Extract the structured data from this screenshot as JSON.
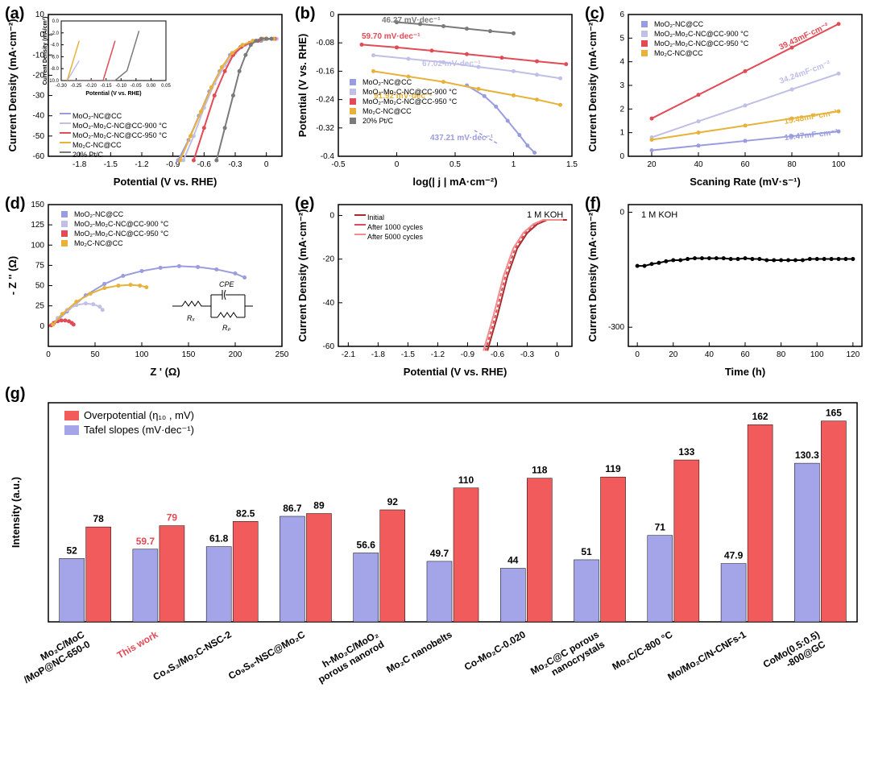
{
  "colors": {
    "blue": "#9a9ce0",
    "purple": "#bfbfe7",
    "red": "#e24a55",
    "yellow": "#e6b23a",
    "gray": "#7a7a7a",
    "darkred": "#a82b2b",
    "rose": "#f08c8c",
    "black": "#000000",
    "barRed": "#f25b5b",
    "barBlue": "#a4a4e8",
    "axis": "#000",
    "grid": "#e5e5e5",
    "bg": "#ffffff"
  },
  "panelA": {
    "label": "(a)",
    "xlabel": "Potential (V vs. RHE)",
    "ylabel": "Current Density (mA·cm⁻²)",
    "xlim": [
      -2.1,
      0.15
    ],
    "ylim": [
      -60,
      10
    ],
    "xticks": [
      -1.8,
      -1.5,
      -1.2,
      -0.9,
      -0.6,
      -0.3,
      0.0
    ],
    "yticks": [
      -60,
      -50,
      -40,
      -30,
      -20,
      -10,
      0,
      10
    ],
    "series": [
      {
        "name": "MoO₂-NC@CC",
        "color": "blue",
        "x": [
          -0.85,
          -0.75,
          -0.65,
          -0.55,
          -0.45,
          -0.35,
          -0.25,
          -0.15,
          -0.05,
          0.05
        ],
        "y": [
          -62,
          -52,
          -40,
          -28,
          -18,
          -10,
          -6,
          -4,
          -3,
          -2
        ]
      },
      {
        "name": "MoO₂-Mo₂C-NC@CC-900 °C",
        "color": "purple",
        "x": [
          -0.8,
          -0.7,
          -0.6,
          -0.5,
          -0.4,
          -0.3,
          -0.2,
          -0.1,
          0,
          0.1
        ],
        "y": [
          -62,
          -50,
          -36,
          -24,
          -15,
          -9,
          -5,
          -3,
          -2,
          -2
        ]
      },
      {
        "name": "MoO₂-Mo₂C-NC@CC-950 °C",
        "color": "red",
        "x": [
          -0.7,
          -0.6,
          -0.5,
          -0.4,
          -0.32,
          -0.24,
          -0.16,
          -0.08,
          0,
          0.08
        ],
        "y": [
          -62,
          -46,
          -30,
          -18,
          -10,
          -6,
          -4,
          -3,
          -2,
          -2
        ]
      },
      {
        "name": "Mo₂C-NC@CC",
        "color": "yellow",
        "x": [
          -0.83,
          -0.73,
          -0.63,
          -0.53,
          -0.43,
          -0.33,
          -0.23,
          -0.13,
          -0.03,
          0.07
        ],
        "y": [
          -62,
          -50,
          -38,
          -26,
          -16,
          -9,
          -5,
          -3,
          -2,
          -2
        ]
      },
      {
        "name": "20% Pt/C",
        "color": "gray",
        "x": [
          -0.48,
          -0.4,
          -0.32,
          -0.26,
          -0.2,
          -0.15,
          -0.1,
          -0.05,
          0,
          0.05
        ],
        "y": [
          -62,
          -46,
          -30,
          -18,
          -10,
          -5,
          -3,
          -2,
          -2,
          -2
        ]
      }
    ],
    "inset": {
      "xlabel": "Potential (V vs. RHE)",
      "ylabel": "Current Density (mA/cm²)",
      "xlim": [
        -0.3,
        0.05
      ],
      "ylim": [
        -10,
        0
      ],
      "xticks": [
        -0.3,
        -0.25,
        -0.2,
        -0.15,
        -0.1,
        -0.05,
        0.0,
        0.05
      ],
      "yticks": [
        -10,
        -8,
        -6,
        -4,
        -2,
        0
      ]
    }
  },
  "panelB": {
    "label": "(b)",
    "xlabel": "log(| j | mA·cm⁻²)",
    "ylabel": "Potential (V vs. RHE)",
    "xlim": [
      -0.5,
      1.5
    ],
    "ylim": [
      -0.4,
      0.0
    ],
    "xticks": [
      -0.5,
      0.0,
      0.5,
      1.0,
      1.5
    ],
    "yticks": [
      -0.4,
      -0.32,
      -0.24,
      -0.16,
      -0.08,
      0.0
    ],
    "series": [
      {
        "name": "MoO₂-NC@CC",
        "color": "blue",
        "slope": "437.21 mV·dec⁻¹",
        "x": [
          0.6,
          0.75,
          0.85,
          0.95,
          1.05,
          1.12,
          1.18
        ],
        "y": [
          -0.2,
          -0.23,
          -0.26,
          -0.3,
          -0.34,
          -0.37,
          -0.39
        ]
      },
      {
        "name": "MoO₂-Mo₂C-NC@CC-900 °C",
        "color": "purple",
        "slope": "67.02 mV·dec⁻¹",
        "x": [
          -0.2,
          0.1,
          0.4,
          0.7,
          1.0,
          1.2,
          1.4
        ],
        "y": [
          -0.115,
          -0.125,
          -0.135,
          -0.148,
          -0.16,
          -0.17,
          -0.18
        ]
      },
      {
        "name": "MoO₂-Mo₂C-NC@CC-950 °C",
        "color": "red",
        "slope": "59.70 mV·dec⁻¹",
        "x": [
          -0.3,
          0.0,
          0.3,
          0.6,
          0.9,
          1.2,
          1.45
        ],
        "y": [
          -0.085,
          -0.093,
          -0.102,
          -0.112,
          -0.122,
          -0.132,
          -0.14
        ]
      },
      {
        "name": "Mo₂C-NC@CC",
        "color": "yellow",
        "slope": "91.92 mV·dec⁻¹",
        "x": [
          -0.2,
          0.1,
          0.4,
          0.7,
          1.0,
          1.2,
          1.4
        ],
        "y": [
          -0.16,
          -0.175,
          -0.19,
          -0.21,
          -0.228,
          -0.24,
          -0.255
        ]
      },
      {
        "name": "20% Pt/C",
        "color": "gray",
        "slope": "46.27 mV·dec⁻¹",
        "x": [
          0.0,
          0.2,
          0.4,
          0.6,
          0.8,
          1.0
        ],
        "y": [
          -0.022,
          -0.027,
          -0.033,
          -0.04,
          -0.047,
          -0.053
        ]
      }
    ]
  },
  "panelC": {
    "label": "(c)",
    "xlabel": "Scaning Rate (mV·s⁻¹)",
    "ylabel": "Current Density (mA·cm⁻²)",
    "xlim": [
      10,
      110
    ],
    "ylim": [
      0,
      6
    ],
    "xticks": [
      20,
      40,
      60,
      80,
      100
    ],
    "yticks": [
      0,
      1,
      2,
      3,
      4,
      5,
      6
    ],
    "series": [
      {
        "name": "MoO₂-NC@CC",
        "color": "blue",
        "cap": "10.47mF·cm⁻²",
        "x": [
          20,
          40,
          60,
          80,
          100
        ],
        "y": [
          0.25,
          0.45,
          0.65,
          0.85,
          1.05
        ]
      },
      {
        "name": "MoO₂-Mo₂C-NC@CC-900 °C",
        "color": "purple",
        "cap": "34.24mF·cm⁻²",
        "x": [
          20,
          40,
          60,
          80,
          100
        ],
        "y": [
          0.8,
          1.48,
          2.15,
          2.83,
          3.5
        ]
      },
      {
        "name": "MoO₂-Mo₂C-NC@CC-950 °C",
        "color": "red",
        "cap": "39.43mF·cm⁻²",
        "x": [
          20,
          40,
          60,
          80,
          100
        ],
        "y": [
          1.6,
          2.6,
          3.6,
          4.6,
          5.6
        ]
      },
      {
        "name": "Mo₂C-NC@CC",
        "color": "yellow",
        "cap": "15.48mF·cm⁻²",
        "x": [
          20,
          40,
          60,
          80,
          100
        ],
        "y": [
          0.7,
          1.0,
          1.3,
          1.6,
          1.9
        ]
      }
    ]
  },
  "panelD": {
    "label": "(d)",
    "xlabel": "Z ' (Ω)",
    "ylabel": "- Z '' (Ω)",
    "xlim": [
      0,
      250
    ],
    "ylim": [
      -25,
      150
    ],
    "xticks": [
      0,
      50,
      100,
      150,
      200,
      250
    ],
    "yticks": [
      0,
      25,
      50,
      75,
      100,
      125,
      150
    ],
    "circuit": {
      "Rs": "Rₓ",
      "CPE": "CPE",
      "Rp": "Rₚ"
    },
    "series": [
      {
        "name": "MoO₂-NC@CC",
        "color": "blue",
        "x": [
          5,
          20,
          40,
          60,
          80,
          100,
          120,
          140,
          160,
          180,
          200,
          210
        ],
        "y": [
          2,
          18,
          38,
          52,
          62,
          68,
          72,
          74,
          73,
          70,
          65,
          60
        ]
      },
      {
        "name": "MoO₂-Mo₂C-NC@CC-900 °C",
        "color": "purple",
        "x": [
          4,
          10,
          20,
          30,
          40,
          48,
          55,
          58
        ],
        "y": [
          2,
          10,
          20,
          26,
          28,
          27,
          24,
          20
        ]
      },
      {
        "name": "MoO₂-Mo₂C-NC@CC-950 °C",
        "color": "red",
        "x": [
          3,
          6,
          10,
          14,
          18,
          22,
          25,
          27
        ],
        "y": [
          1,
          4,
          6,
          7,
          7,
          6,
          4,
          2
        ]
      },
      {
        "name": "Mo₂C-NC@CC",
        "color": "yellow",
        "x": [
          5,
          15,
          30,
          45,
          60,
          75,
          88,
          98,
          105
        ],
        "y": [
          2,
          15,
          30,
          40,
          47,
          50,
          51,
          50,
          48
        ]
      }
    ]
  },
  "panelE": {
    "label": "(e)",
    "xlabel": "Potential (V vs. RHE)",
    "ylabel": "Current Density (mA·cm⁻²)",
    "note": "1 M KOH",
    "xlim": [
      -2.2,
      0.15
    ],
    "ylim": [
      -60,
      5
    ],
    "xticks": [
      -2.1,
      -1.8,
      -1.5,
      -1.2,
      -0.9,
      -0.6,
      -0.3,
      0.0
    ],
    "yticks": [
      -60,
      -40,
      -20,
      0
    ],
    "series": [
      {
        "name": "Initial",
        "color": "darkred",
        "dash": "",
        "x": [
          -0.7,
          -0.6,
          -0.5,
          -0.4,
          -0.3,
          -0.2,
          -0.1,
          0,
          0.1
        ],
        "y": [
          -62,
          -46,
          -28,
          -15,
          -8,
          -4,
          -2,
          -2,
          -2
        ]
      },
      {
        "name": "After 1000 cycles",
        "color": "red",
        "dash": "4,3",
        "x": [
          -0.72,
          -0.62,
          -0.52,
          -0.42,
          -0.32,
          -0.22,
          -0.12,
          -0.02,
          0.08
        ],
        "y": [
          -62,
          -46,
          -28,
          -15,
          -8,
          -4,
          -2,
          -2,
          -2
        ]
      },
      {
        "name": "After 5000 cycles",
        "color": "rose",
        "dash": "",
        "x": [
          -0.74,
          -0.64,
          -0.54,
          -0.44,
          -0.34,
          -0.24,
          -0.14,
          -0.04,
          0.06
        ],
        "y": [
          -62,
          -46,
          -28,
          -15,
          -8,
          -4,
          -2,
          -2,
          -2
        ]
      }
    ]
  },
  "panelF": {
    "label": "(f)",
    "xlabel": "Time (h)",
    "ylabel": "Current Density (mA·cm⁻²)",
    "note": "1 M KOH",
    "xlim": [
      -5,
      125
    ],
    "ylim": [
      -350,
      20
    ],
    "xticks": [
      0,
      20,
      40,
      60,
      80,
      100,
      120
    ],
    "yticks": [
      -300,
      0
    ],
    "series": [
      {
        "name": "stability",
        "color": "black",
        "x": [
          0,
          4,
          8,
          12,
          16,
          20,
          24,
          28,
          32,
          36,
          40,
          44,
          48,
          52,
          56,
          60,
          64,
          68,
          72,
          76,
          80,
          84,
          88,
          92,
          96,
          100,
          104,
          108,
          112,
          116,
          120
        ],
        "y": [
          -140,
          -140,
          -135,
          -132,
          -128,
          -125,
          -125,
          -122,
          -120,
          -120,
          -120,
          -120,
          -120,
          -122,
          -122,
          -120,
          -122,
          -122,
          -125,
          -125,
          -125,
          -125,
          -125,
          -125,
          -122,
          -122,
          -122,
          -122,
          -122,
          -122,
          -122
        ]
      }
    ]
  },
  "panelG": {
    "label": "(g)",
    "ylabel": "Intensity (a.u.)",
    "legend": {
      "red": "Overpotential (η₁₀ , mV)",
      "blue": "Tafel slopes (mV·dec⁻¹)"
    },
    "ymax": 180,
    "items": [
      {
        "cat": "Mo₂C/MoC\n/MoP@NC-650-0",
        "tafel": 52,
        "over": 78,
        "highlight": false
      },
      {
        "cat": "This work",
        "tafel": 59.7,
        "over": 79,
        "highlight": true
      },
      {
        "cat": "Co₄S₃/Mo₂C-NSC-2",
        "tafel": 61.8,
        "over": 82.5,
        "highlight": false
      },
      {
        "cat": "Co₉S₈-NSC@Mo₂C",
        "tafel": 86.7,
        "over": 89,
        "highlight": false
      },
      {
        "cat": "h-Mo₂C/MoO₂\nporous nanorod",
        "tafel": 56.6,
        "over": 92,
        "highlight": false
      },
      {
        "cat": "Mo₂C nanobelts",
        "tafel": 49.7,
        "over": 110,
        "highlight": false
      },
      {
        "cat": "Co-Mo₂C-0.020",
        "tafel": 44,
        "over": 118,
        "highlight": false
      },
      {
        "cat": "Mo₂C@C porous\nnanocrystals",
        "tafel": 51,
        "over": 119,
        "highlight": false
      },
      {
        "cat": "Mo₂C/C-800 °C",
        "tafel": 71,
        "over": 133,
        "highlight": false
      },
      {
        "cat": "Mo/Mo₂C/N-CNFs-1",
        "tafel": 47.9,
        "over": 162,
        "highlight": false
      },
      {
        "cat": "CoMo(0.5:0.5)\n-800@GC",
        "tafel": 130.3,
        "over": 165,
        "highlight": false
      }
    ]
  }
}
